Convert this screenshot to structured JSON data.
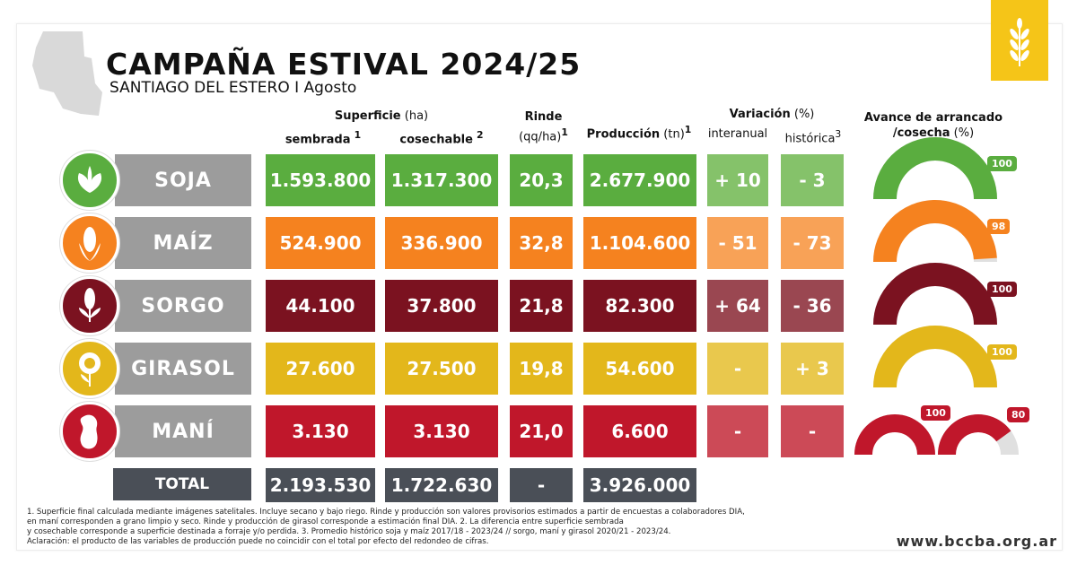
{
  "header": {
    "title": "CAMPAÑA ESTIVAL 2024/25",
    "subtitle": "SANTIAGO DEL ESTERO I Agosto"
  },
  "columns": {
    "superficie": "Superficie",
    "superficie_unit": "(ha)",
    "sembrada": "sembrada",
    "sembrada_sup": "1",
    "cosechable": "cosechable",
    "cosechable_sup": "2",
    "rinde": "Rinde",
    "rinde_unit": "(qq/ha)",
    "rinde_sup": "1",
    "produccion": "Producción",
    "produccion_unit": "(tn)",
    "produccion_sup": "1",
    "variacion": "Variación",
    "variacion_unit": "(%)",
    "interanual": "interanual",
    "historica": "histórica",
    "historica_sup": "3",
    "avance": "Avance de arrancado",
    "avance2": "/cosecha",
    "avance_unit": "(%)"
  },
  "colors": {
    "soja": "#5aad3f",
    "soja_light": "#85c26a",
    "maiz": "#f5821f",
    "maiz_light": "#f8a257",
    "sorgo": "#7b1220",
    "sorgo_light": "#9a4751",
    "girasol": "#e3b71b",
    "girasol_light": "#e9c84d",
    "mani": "#c0172b",
    "mani_light": "#cc4a57",
    "total": "#4a4f57",
    "namebar": "#9c9c9c",
    "logo": "#f5c518"
  },
  "chart_data": {
    "type": "table",
    "rows": [
      {
        "crop": "SOJA",
        "sembrada": "1.593.800",
        "cosechable": "1.317.300",
        "rinde": "20,3",
        "produccion": "2.677.900",
        "interanual": "+ 10",
        "historica": "- 3",
        "avance": [
          100
        ],
        "avance_labels": [
          "100"
        ],
        "icon": "soybean-icon"
      },
      {
        "crop": "MAÍZ",
        "sembrada": "524.900",
        "cosechable": "336.900",
        "rinde": "32,8",
        "produccion": "1.104.600",
        "interanual": "- 51",
        "historica": "- 73",
        "avance": [
          98
        ],
        "avance_labels": [
          "98"
        ],
        "icon": "corn-icon"
      },
      {
        "crop": "SORGO",
        "sembrada": "44.100",
        "cosechable": "37.800",
        "rinde": "21,8",
        "produccion": "82.300",
        "interanual": "+ 64",
        "historica": "- 36",
        "avance": [
          100
        ],
        "avance_labels": [
          "100"
        ],
        "icon": "sorghum-icon"
      },
      {
        "crop": "GIRASOL",
        "sembrada": "27.600",
        "cosechable": "27.500",
        "rinde": "19,8",
        "produccion": "54.600",
        "interanual": "-",
        "historica": "+ 3",
        "avance": [
          100
        ],
        "avance_labels": [
          "100"
        ],
        "icon": "sunflower-icon"
      },
      {
        "crop": "MANÍ",
        "sembrada": "3.130",
        "cosechable": "3.130",
        "rinde": "21,0",
        "produccion": "6.600",
        "interanual": "-",
        "historica": "-",
        "avance": [
          100,
          80
        ],
        "avance_labels": [
          "100",
          "80"
        ],
        "icon": "peanut-icon"
      }
    ],
    "total": {
      "label": "TOTAL",
      "sembrada": "2.193.530",
      "cosechable": "1.722.630",
      "rinde": "-",
      "produccion": "3.926.000"
    }
  },
  "footnotes": [
    "1. Superficie final calculada mediante imágenes satelitales. Incluye secano y bajo riego. Rinde y producción son valores provisorios estimados a partir de encuestas a colaboradores DIA,",
    "en maní corresponden a grano limpio y seco. Rinde y producción de girasol corresponde a estimación final DIA. 2. La diferencia entre superficie sembrada",
    "y cosechable corresponde a superficie destinada a forraje y/o perdida. 3. Promedio histórico soja y maíz 2017/18 - 2023/24 // sorgo, maní y girasol 2020/21 - 2023/24.",
    "Aclaración: el producto de las variables de producción puede no coincidir con el total por efecto del redondeo de cifras."
  ],
  "url": "www.bccba.org.ar"
}
